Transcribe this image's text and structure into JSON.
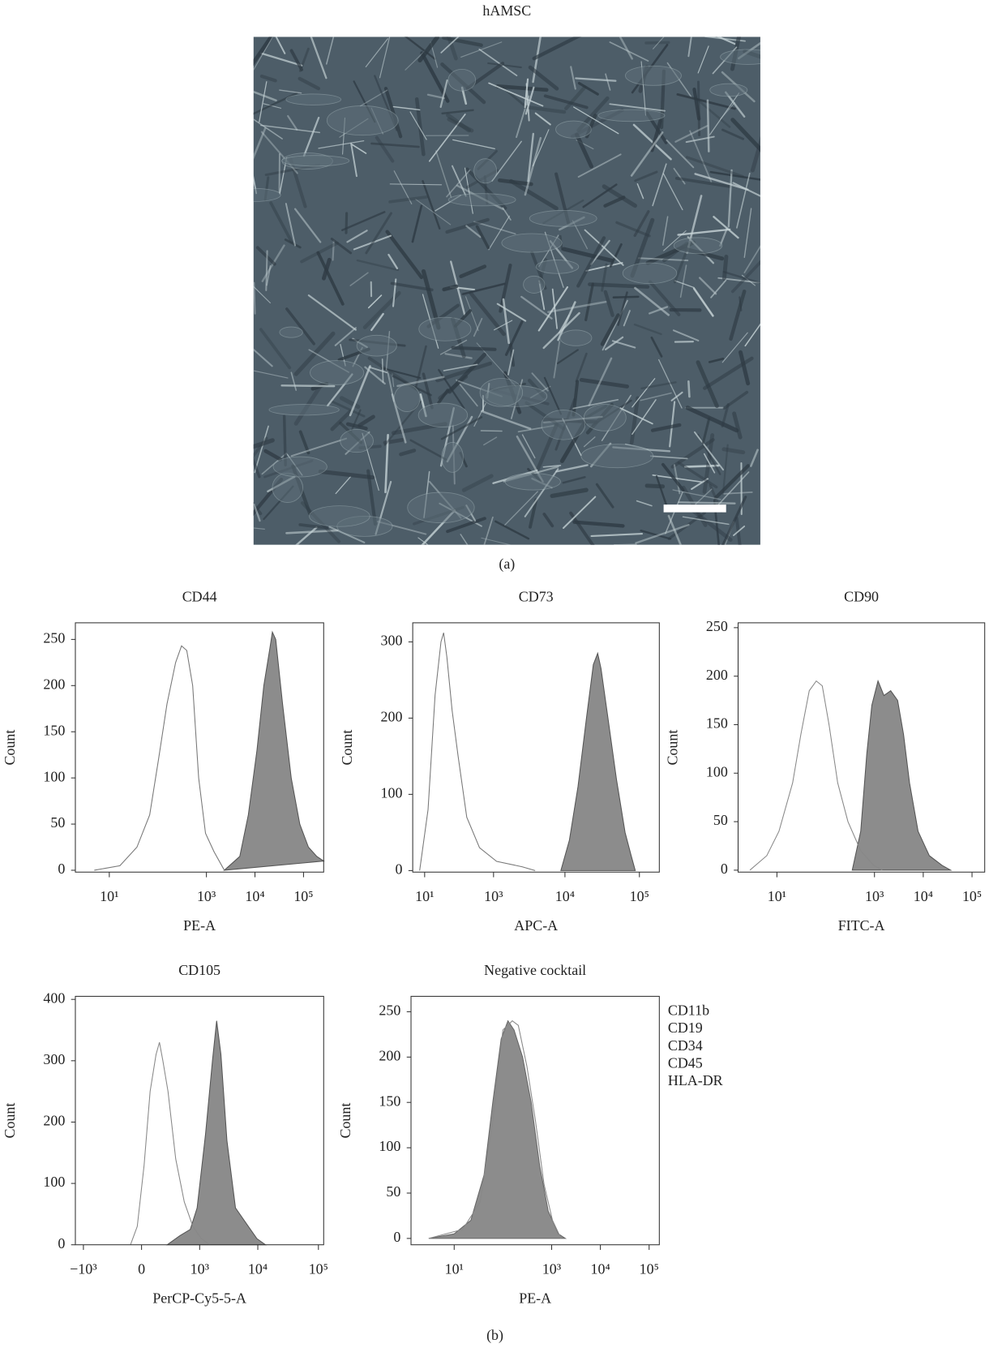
{
  "title": "hAMSC",
  "panel_a_label": "(a)",
  "panel_b_label": "(b)",
  "chart_data": [
    {
      "type": "area",
      "title": "CD44",
      "x_label": "PE-A",
      "y_label": "Count",
      "xscale": "log",
      "xlim": [
        2,
        260000
      ],
      "ylim": [
        -2,
        268
      ],
      "xticks": [
        {
          "value": 10,
          "label": "10¹"
        },
        {
          "value": 1000,
          "label": "10³"
        },
        {
          "value": 10000,
          "label": "10⁴"
        },
        {
          "value": 100000,
          "label": "10⁵"
        }
      ],
      "yticks": [
        0,
        50,
        100,
        150,
        200,
        250
      ],
      "series": [
        {
          "color": "#555555",
          "fill": "#8c8c8c",
          "x": [
            2340,
            4860,
            7310,
            11000,
            15200,
            20200,
            22800,
            26800,
            37100,
            55700,
            83700,
            126000,
            188000,
            260000
          ],
          "values": [
            0,
            15,
            60,
            130,
            200,
            240,
            258,
            250,
            180,
            100,
            50,
            25,
            15,
            10
          ]
        },
        {
          "color": "#777777",
          "fill": "none",
          "x": [
            4.9,
            16.5,
            37,
            68,
            103,
            154,
            232,
            308,
            393,
            521,
            693,
            960,
            1440,
            2340
          ],
          "values": [
            0,
            5,
            25,
            60,
            120,
            180,
            225,
            243,
            238,
            200,
            100,
            40,
            20,
            0
          ]
        }
      ]
    },
    {
      "type": "area",
      "title": "CD73",
      "x_label": "APC-A",
      "y_label": "Count",
      "xscale": "symlog",
      "xlim": [
        -42,
        184700
      ],
      "ylim": [
        -2,
        325
      ],
      "xticks": [
        {
          "value": 10,
          "label": "10¹"
        },
        {
          "value": 1000,
          "label": "10³"
        },
        {
          "value": 10000,
          "label": "10⁴"
        },
        {
          "value": 100000,
          "label": "10⁵"
        }
      ],
      "yticks": [
        0,
        100,
        200,
        300
      ],
      "series": [
        {
          "color": "#555555",
          "fill": "#8c8c8c",
          "x": [
            8800,
            11500,
            15000,
            19500,
            24100,
            27600,
            30600,
            37900,
            49300,
            64300,
            77400,
            88100
          ],
          "values": [
            0,
            40,
            110,
            200,
            270,
            285,
            265,
            200,
            120,
            50,
            20,
            0
          ]
        },
        {
          "color": "#777777",
          "fill": "none",
          "x": [
            -10,
            25,
            61,
            98,
            117,
            143,
            189,
            253,
            368,
            605,
            1111,
            2600,
            3920
          ],
          "values": [
            0,
            80,
            230,
            300,
            312,
            280,
            210,
            150,
            70,
            30,
            12,
            5,
            0
          ]
        }
      ]
    },
    {
      "type": "area",
      "title": "CD90",
      "x_label": "FITC-A",
      "y_label": "Count",
      "xscale": "log",
      "xlim": [
        1.6,
        182000
      ],
      "ylim": [
        -2,
        255
      ],
      "xticks": [
        {
          "value": 10,
          "label": "10¹"
        },
        {
          "value": 1000,
          "label": "10³"
        },
        {
          "value": 10000,
          "label": "10⁴"
        },
        {
          "value": 100000,
          "label": "10⁵"
        }
      ],
      "yticks": [
        0,
        50,
        100,
        150,
        200,
        250
      ],
      "series": [
        {
          "color": "#555555",
          "fill": "#8c8c8c",
          "x": [
            350,
            523,
            695,
            885,
            1180,
            1560,
            2150,
            2980,
            3950,
            5240,
            7850,
            13300,
            24300,
            36400
          ],
          "values": [
            0,
            40,
            120,
            170,
            195,
            180,
            185,
            175,
            140,
            90,
            40,
            15,
            5,
            0
          ]
        },
        {
          "color": "#888888",
          "fill": "none",
          "x": [
            2.8,
            6.2,
            11,
            21,
            31,
            46,
            64,
            85,
            117,
            176,
            286,
            523,
            960,
            1440
          ],
          "values": [
            0,
            15,
            40,
            90,
            140,
            185,
            195,
            190,
            150,
            90,
            50,
            20,
            5,
            0
          ]
        }
      ]
    },
    {
      "type": "area",
      "title": "CD105",
      "x_label": "PerCP-Cy5-5-A",
      "y_label": "Count",
      "xscale": "symlog",
      "xlim": [
        -1400,
        122000
      ],
      "ylim": [
        0,
        405
      ],
      "xticks": [
        {
          "value": -1000,
          "label": "−10³"
        },
        0,
        {
          "value": 1000,
          "label": "10³"
        },
        {
          "value": 10000,
          "label": "10⁴"
        },
        {
          "value": 100000,
          "label": "10⁵"
        }
      ],
      "yticks": [
        0,
        100,
        200,
        300,
        400
      ],
      "series": [
        {
          "color": "#555555",
          "fill": "#8c8c8c",
          "x": [
            205,
            410,
            663,
            896,
            1280,
            1700,
            2010,
            2390,
            3030,
            4230,
            6950,
            9650,
            13400
          ],
          "values": [
            0,
            15,
            25,
            60,
            180,
            300,
            365,
            310,
            170,
            60,
            30,
            10,
            0
          ]
        },
        {
          "color": "#888888",
          "fill": "none",
          "x": [
            -65,
            -22,
            13,
            48,
            91,
            121,
            155,
            215,
            330,
            504,
            744,
            1070,
            1530
          ],
          "values": [
            0,
            30,
            130,
            250,
            310,
            330,
            300,
            250,
            140,
            70,
            30,
            10,
            0
          ]
        }
      ]
    },
    {
      "type": "area",
      "title": "Negative cocktail",
      "x_label": "PE-A",
      "y_label": "Count",
      "xscale": "log",
      "xlim": [
        1.3,
        162000
      ],
      "ylim": [
        -7,
        267
      ],
      "annotations": [
        "CD11b",
        "CD19",
        "CD34",
        "CD45",
        "HLA-DR"
      ],
      "xticks": [
        {
          "value": 10,
          "label": "10¹"
        },
        {
          "value": 1000,
          "label": "10³"
        },
        {
          "value": 10000,
          "label": "10⁴"
        },
        {
          "value": 100000,
          "label": "10⁵"
        }
      ],
      "yticks": [
        0,
        50,
        100,
        150,
        200,
        250
      ],
      "series": [
        {
          "color": "#666666",
          "fill": "#8c8c8c",
          "x": [
            3.0,
            10,
            22,
            41,
            62,
            92,
            127,
            169,
            253,
            380,
            568,
            851,
            1380,
            1910
          ],
          "values": [
            0,
            5,
            20,
            70,
            150,
            220,
            240,
            230,
            200,
            150,
            80,
            30,
            5,
            0
          ]
        },
        {
          "color": "#888888",
          "fill": "none",
          "x": [
            3.0,
            15,
            34,
            62,
            100,
            156,
            207,
            310,
            464,
            695,
            1040,
            1560
          ],
          "values": [
            0,
            10,
            40,
            130,
            230,
            240,
            235,
            190,
            130,
            60,
            20,
            0
          ]
        }
      ]
    }
  ]
}
